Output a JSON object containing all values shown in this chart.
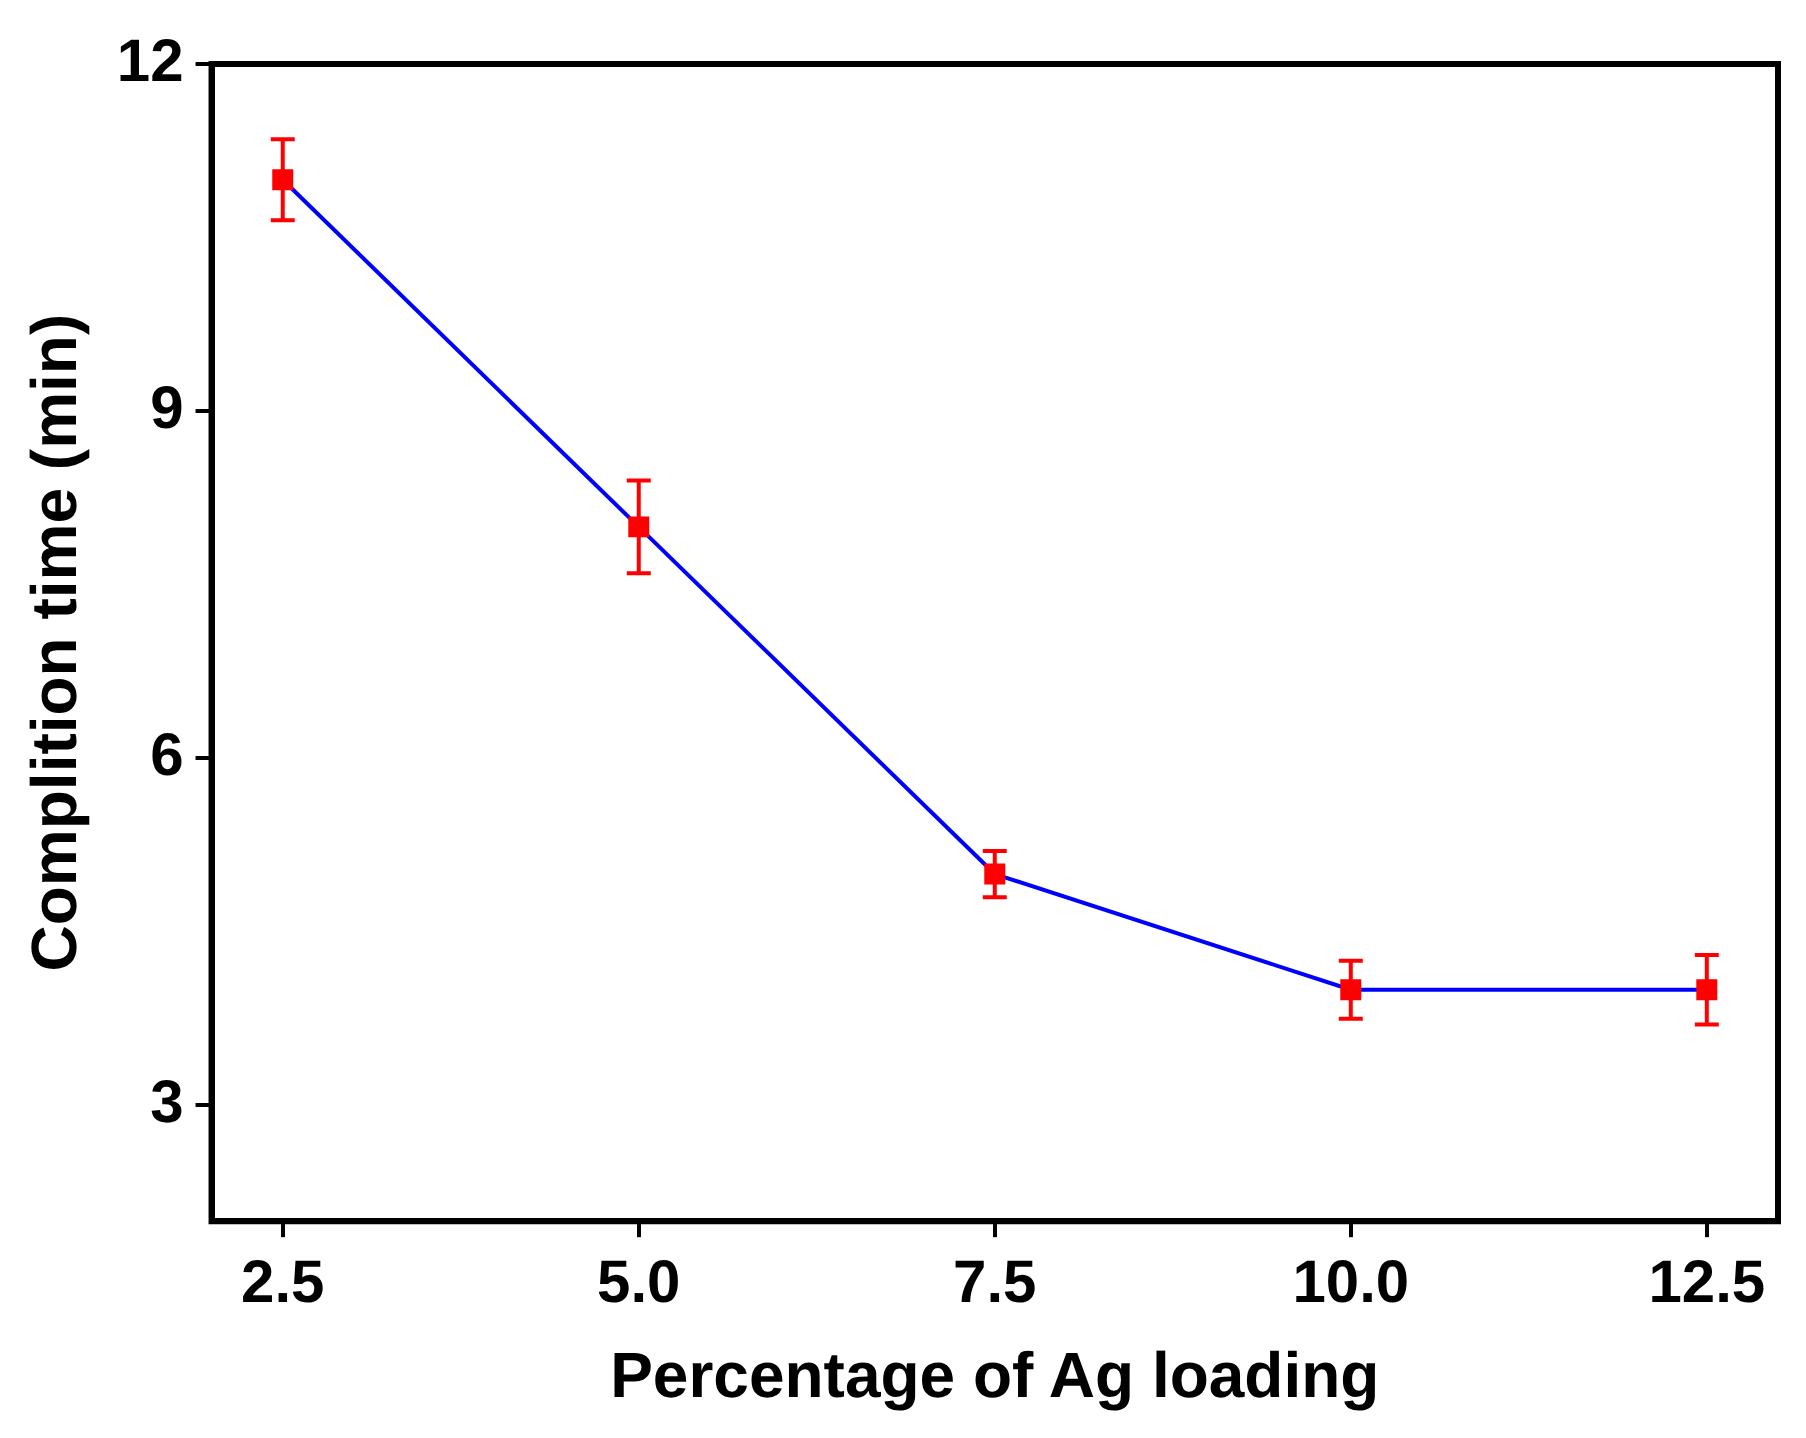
{
  "chart_data": {
    "type": "line",
    "xlabel": "Percentage of Ag loading",
    "ylabel": "Complition time (min)",
    "x": [
      2.5,
      5,
      7.5,
      10,
      12.5
    ],
    "series": [
      {
        "color": "#0000ff",
        "colors": [
          "#ff0000",
          "#ff0000",
          "#ff0000",
          "#ff0000",
          "#ff0000"
        ],
        "values": [
          11,
          8,
          5,
          4,
          4
        ],
        "errors": [
          0.35,
          0.4,
          0.2,
          0.25,
          0.3
        ]
      }
    ],
    "xlim": [
      2,
      13
    ],
    "ylim": [
      2,
      12
    ],
    "xticks": [
      2.5,
      {
        "value": 5,
        "label": "5.0"
      },
      7.5,
      {
        "value": 10,
        "label": "10.0"
      },
      12.5
    ],
    "yticks": [
      3,
      6,
      9,
      12
    ],
    "grid": false,
    "legend": false,
    "marker": "square",
    "line_style": "solid"
  }
}
